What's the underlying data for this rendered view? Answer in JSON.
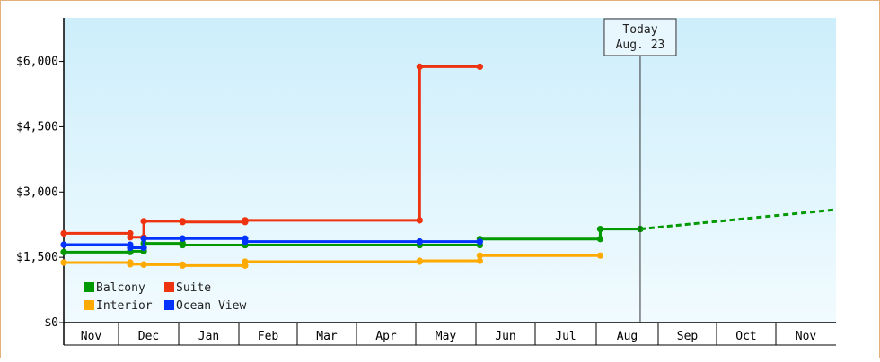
{
  "chart_data": {
    "type": "line",
    "subtype": "step",
    "y_ticks": [
      {
        "value": 0,
        "label": "$0"
      },
      {
        "value": 1500,
        "label": "$1,500"
      },
      {
        "value": 3000,
        "label": "$3,000"
      },
      {
        "value": 4500,
        "label": "$4,500"
      },
      {
        "value": 6000,
        "label": "$6,000"
      }
    ],
    "ylim": [
      0,
      7000
    ],
    "x_months": [
      "Nov",
      "Dec",
      "Jan",
      "Feb",
      "Mar",
      "Apr",
      "May",
      "Jun",
      "Jul",
      "Aug",
      "Sep",
      "Oct",
      "Nov"
    ],
    "x_domain": [
      "Nov 1",
      "Nov 30 (following year)"
    ],
    "today": {
      "line1": "Today",
      "line2": "Aug. 23",
      "x": "Aug 23"
    },
    "legend_position": "bottom-left",
    "series": [
      {
        "name": "Balcony",
        "color": "#009900",
        "points": [
          [
            "Nov 1",
            1620
          ],
          [
            "Dec 7",
            1620
          ],
          [
            "Dec 7",
            1640
          ],
          [
            "Dec 14",
            1640
          ],
          [
            "Dec 14",
            1820
          ],
          [
            "Jan 3",
            1820
          ],
          [
            "Jan 3",
            1780
          ],
          [
            "Feb 4",
            1780
          ],
          [
            "Feb 4",
            1780
          ],
          [
            "May 3",
            1780
          ],
          [
            "May 3",
            1780
          ],
          [
            "Jun 3",
            1780
          ],
          [
            "Jun 3",
            1920
          ],
          [
            "Aug 3",
            1920
          ],
          [
            "Aug 3",
            2150
          ],
          [
            "Aug 23",
            2150
          ]
        ],
        "projection": [
          [
            "Aug 23",
            2150
          ],
          [
            "Nov 30",
            2590
          ]
        ]
      },
      {
        "name": "Suite",
        "color": "#ee3311",
        "points": [
          [
            "Nov 1",
            2050
          ],
          [
            "Dec 7",
            2050
          ],
          [
            "Dec 7",
            1960
          ],
          [
            "Dec 14",
            1960
          ],
          [
            "Dec 14",
            2330
          ],
          [
            "Jan 3",
            2330
          ],
          [
            "Jan 3",
            2310
          ],
          [
            "Feb 4",
            2310
          ],
          [
            "Feb 4",
            2350
          ],
          [
            "May 3",
            2350
          ],
          [
            "May 3",
            5880
          ],
          [
            "Jun 3",
            5880
          ]
        ]
      },
      {
        "name": "Interior",
        "color": "#ffaa00",
        "points": [
          [
            "Nov 1",
            1380
          ],
          [
            "Dec 7",
            1380
          ],
          [
            "Dec 7",
            1340
          ],
          [
            "Dec 14",
            1340
          ],
          [
            "Dec 14",
            1330
          ],
          [
            "Jan 3",
            1330
          ],
          [
            "Jan 3",
            1310
          ],
          [
            "Feb 4",
            1310
          ],
          [
            "Feb 4",
            1400
          ],
          [
            "May 3",
            1400
          ],
          [
            "May 3",
            1420
          ],
          [
            "Jun 3",
            1420
          ],
          [
            "Jun 3",
            1540
          ],
          [
            "Aug 3",
            1540
          ]
        ]
      },
      {
        "name": "Ocean View",
        "color": "#0033ff",
        "points": [
          [
            "Nov 1",
            1790
          ],
          [
            "Dec 7",
            1790
          ],
          [
            "Dec 7",
            1720
          ],
          [
            "Dec 14",
            1720
          ],
          [
            "Dec 14",
            1930
          ],
          [
            "Jan 3",
            1930
          ],
          [
            "Jan 3",
            1930
          ],
          [
            "Feb 4",
            1930
          ],
          [
            "Feb 4",
            1860
          ],
          [
            "May 3",
            1860
          ],
          [
            "May 3",
            1860
          ],
          [
            "Jun 3",
            1860
          ]
        ]
      }
    ]
  }
}
